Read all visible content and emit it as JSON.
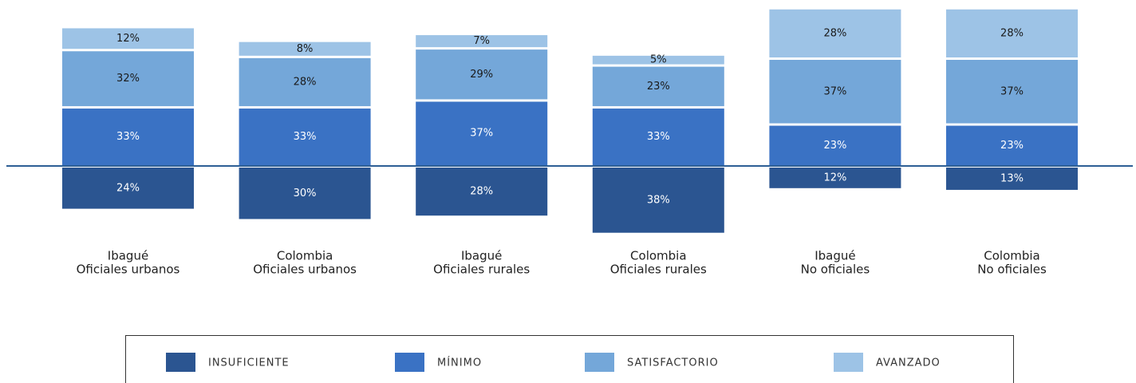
{
  "chart_data": {
    "type": "diverging-stacked-bar",
    "categories": [
      [
        "Ibagué",
        "Oficiales urbanos"
      ],
      [
        "Colombia",
        "Oficiales urbanos"
      ],
      [
        "Ibagué",
        "Oficiales rurales"
      ],
      [
        "Colombia",
        "Oficiales rurales"
      ],
      [
        "Ibagué",
        "No oficiales"
      ],
      [
        "Colombia",
        "No oficiales"
      ]
    ],
    "series": [
      {
        "name": "INSUFICIENTE",
        "color": "#2b5591",
        "label_color": "#ffffff",
        "direction": "down",
        "values": [
          24,
          30,
          28,
          38,
          12,
          13
        ],
        "value_labels": [
          "24%",
          "30%",
          "28%",
          "38%",
          "12%",
          "13%"
        ]
      },
      {
        "name": "MÍNIMO",
        "color": "#3a72c4",
        "label_color": "#ffffff",
        "direction": "up",
        "values": [
          33,
          33,
          37,
          33,
          23,
          23
        ],
        "value_labels": [
          "33%",
          "33%",
          "37%",
          "33%",
          "23%",
          "23%"
        ]
      },
      {
        "name": "SATISFACTORIO",
        "color": "#74a7d9",
        "label_color": "#1a1a1a",
        "direction": "up",
        "values": [
          32,
          28,
          29,
          23,
          37,
          37
        ],
        "value_labels": [
          "32%",
          "28%",
          "29%",
          "23%",
          "37%",
          "37%"
        ]
      },
      {
        "name": "AVANZADO",
        "color": "#9dc3e6",
        "label_color": "#1a1a1a",
        "direction": "up",
        "values": [
          12,
          8,
          7,
          5,
          28,
          28
        ],
        "value_labels": [
          "12%",
          "8%",
          "7%",
          "5%",
          "28%",
          "28%"
        ]
      }
    ]
  }
}
